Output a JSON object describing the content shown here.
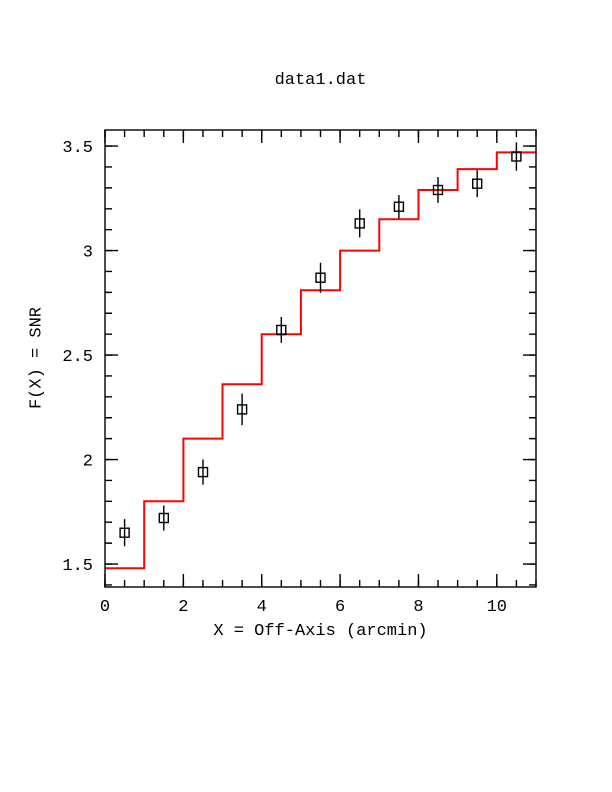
{
  "page": {
    "background": "#ffffff",
    "accent_color": "#ff0000",
    "text_color": "#000000"
  },
  "chart_data": {
    "type": "line",
    "subtype": "step-histogram-with-scatter-errorbars",
    "title": "data1.dat",
    "xlabel": "X = Off-Axis (arcmin)",
    "ylabel": "F(X) = SNR",
    "xlim": [
      0,
      11
    ],
    "ylim": [
      1.39,
      3.577
    ],
    "grid": false,
    "legend": "none",
    "x_tick_values": [
      0,
      2,
      4,
      6,
      8,
      10
    ],
    "x_tick_labels": [
      "0",
      "2",
      "4",
      "6",
      "8",
      "10"
    ],
    "x_minor_step": 0.5,
    "y_tick_values": [
      1.5,
      2,
      2.5,
      3,
      3.5
    ],
    "y_tick_labels": [
      "1.5",
      "2",
      "2.5",
      "3",
      "3.5"
    ],
    "y_minor_step": 0.1,
    "series": [
      {
        "name": "model_step",
        "type": "step",
        "color": "#ff0000",
        "bin_edges": [
          0,
          1,
          2,
          3,
          4,
          5,
          6,
          7,
          8,
          9,
          10,
          11
        ],
        "values": [
          1.48,
          1.8,
          2.1,
          2.36,
          2.6,
          2.81,
          3.0,
          3.15,
          3.29,
          3.39,
          3.47
        ]
      },
      {
        "name": "data_points",
        "type": "scatter",
        "marker": "open-square",
        "color": "#000000",
        "x": [
          0.5,
          1.5,
          2.5,
          3.5,
          4.5,
          5.5,
          6.5,
          7.5,
          8.5,
          9.5,
          10.5
        ],
        "y": [
          1.65,
          1.72,
          1.94,
          2.24,
          2.62,
          2.87,
          3.13,
          3.21,
          3.29,
          3.32,
          3.45
        ],
        "y_err": [
          0.065,
          0.06,
          0.06,
          0.075,
          0.062,
          0.072,
          0.067,
          0.056,
          0.062,
          0.064,
          0.068
        ]
      }
    ]
  }
}
